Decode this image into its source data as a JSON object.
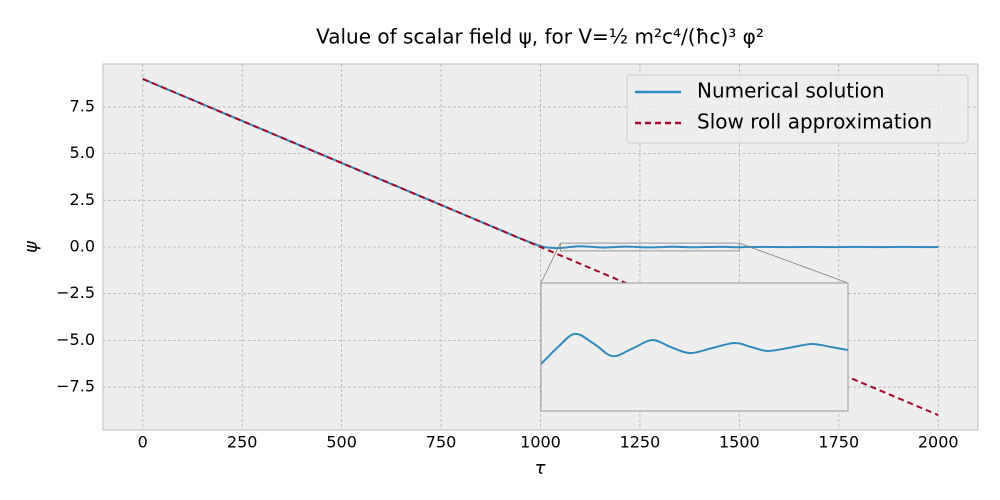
{
  "chart_data": {
    "type": "line",
    "title": "Value of scalar field ψ, for V=½ m²c⁴/(ħc)³ φ²",
    "x_label": "τ",
    "y_label": "ψ",
    "xlim": [
      -100,
      2100
    ],
    "ylim": [
      -9.8,
      9.8
    ],
    "xticks": [
      0,
      250,
      500,
      750,
      1000,
      1250,
      1500,
      1750,
      2000
    ],
    "yticks": [
      {
        "value": -7.5,
        "label": "−7.5"
      },
      {
        "value": -5,
        "label": "−5.0"
      },
      {
        "value": -2.5,
        "label": "−2.5"
      },
      {
        "value": 0,
        "label": "0.0"
      },
      {
        "value": 2.5,
        "label": "2.5"
      },
      {
        "value": 5,
        "label": "5.0"
      },
      {
        "value": 7.5,
        "label": "7.5"
      }
    ],
    "grid": true,
    "legend": "upper right",
    "series": [
      {
        "name": "Numerical solution",
        "color": "#348ABD",
        "style": "solid",
        "x": [
          0,
          100,
          200,
          300,
          400,
          500,
          600,
          700,
          800,
          900,
          950,
          1000,
          1025,
          1050,
          1075,
          1100,
          1128,
          1155,
          1184,
          1213,
          1240,
          1268,
          1300,
          1334,
          1358,
          1383,
          1415,
          1447,
          1475,
          1500,
          1560,
          1620,
          1680,
          1740,
          1800,
          1860,
          1920,
          1980,
          2000
        ],
        "values": [
          9,
          8.1,
          7.2,
          6.3,
          5.4,
          4.5,
          3.6,
          2.7,
          1.8,
          0.9,
          0.45,
          0.05,
          -0.04,
          -0.056,
          0,
          0.043,
          0.01,
          -0.03,
          -0.005,
          0.023,
          0,
          -0.02,
          -0.004,
          0.013,
          0,
          -0.013,
          -0.002,
          0.01,
          0,
          -0.01,
          0.008,
          -0.007,
          0.007,
          -0.006,
          0.005,
          -0.005,
          0.004,
          -0.004,
          0
        ]
      },
      {
        "name": "Slow roll approximation",
        "color": "#A60628",
        "style": "dashed",
        "x": [
          0,
          2000
        ],
        "values": [
          9,
          -9
        ]
      }
    ],
    "inset": {
      "xlim": [
        1050,
        1500
      ],
      "ylim": [
        -0.21,
        0.21
      ]
    }
  }
}
